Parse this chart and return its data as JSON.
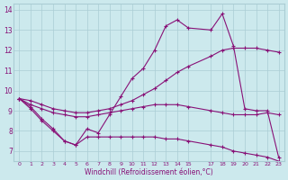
{
  "xlabel": "Windchill (Refroidissement éolien,°C)",
  "background_color": "#cce9ed",
  "grid_color": "#aacdd4",
  "line_color": "#881177",
  "xlim": [
    -0.5,
    23.5
  ],
  "ylim": [
    6.5,
    14.3
  ],
  "xticks": [
    0,
    1,
    2,
    3,
    4,
    5,
    6,
    7,
    8,
    9,
    10,
    11,
    12,
    13,
    14,
    15,
    17,
    18,
    19,
    20,
    21,
    22,
    23
  ],
  "yticks": [
    7,
    8,
    9,
    10,
    11,
    12,
    13,
    14
  ],
  "line1_x": [
    0,
    1,
    2,
    3,
    4,
    5,
    6,
    7,
    8,
    9,
    10,
    11,
    12,
    13,
    14,
    15,
    17,
    18,
    19,
    20,
    21,
    22,
    23
  ],
  "line1_y": [
    9.6,
    9.2,
    8.6,
    8.1,
    7.5,
    7.3,
    8.1,
    7.9,
    8.8,
    9.7,
    10.6,
    11.1,
    12.0,
    13.2,
    13.5,
    13.1,
    13.0,
    13.8,
    12.2,
    9.1,
    9.0,
    9.0,
    6.7
  ],
  "line2_x": [
    0,
    1,
    2,
    3,
    4,
    5,
    6,
    7,
    8,
    9,
    10,
    11,
    12,
    13,
    14,
    15,
    17,
    18,
    19,
    20,
    21,
    22,
    23
  ],
  "line2_y": [
    9.6,
    9.5,
    9.3,
    9.1,
    9.0,
    8.9,
    8.9,
    9.0,
    9.1,
    9.3,
    9.5,
    9.8,
    10.1,
    10.5,
    10.9,
    11.2,
    11.7,
    12.0,
    12.1,
    12.1,
    12.1,
    12.0,
    11.9
  ],
  "line3_x": [
    0,
    1,
    2,
    3,
    4,
    5,
    6,
    7,
    8,
    9,
    10,
    11,
    12,
    13,
    14,
    15,
    17,
    18,
    19,
    20,
    21,
    22,
    23
  ],
  "line3_y": [
    9.6,
    9.3,
    9.1,
    8.9,
    8.8,
    8.7,
    8.7,
    8.8,
    8.9,
    9.0,
    9.1,
    9.2,
    9.3,
    9.3,
    9.3,
    9.2,
    9.0,
    8.9,
    8.8,
    8.8,
    8.8,
    8.9,
    8.8
  ],
  "line4_x": [
    0,
    1,
    2,
    3,
    4,
    5,
    6,
    7,
    8,
    9,
    10,
    11,
    12,
    13,
    14,
    15,
    17,
    18,
    19,
    20,
    21,
    22,
    23
  ],
  "line4_y": [
    9.6,
    9.1,
    8.5,
    8.0,
    7.5,
    7.3,
    7.7,
    7.7,
    7.7,
    7.7,
    7.7,
    7.7,
    7.7,
    7.6,
    7.6,
    7.5,
    7.3,
    7.2,
    7.0,
    6.9,
    6.8,
    6.7,
    6.5
  ]
}
